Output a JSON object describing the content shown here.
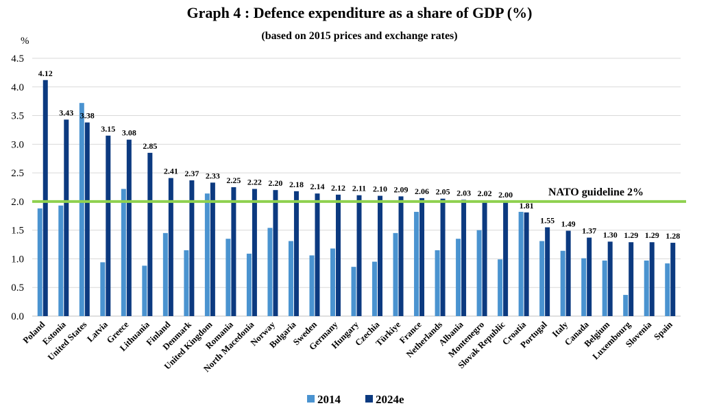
{
  "chart_data": {
    "type": "bar",
    "title": "Graph 4 : Defence expenditure as a share of GDP (%)",
    "subtitle": "(based on 2015 prices and exchange rates)",
    "ylabel": "%",
    "xlabel": "",
    "ylim": [
      0,
      4.5
    ],
    "yticks": [
      "0.0",
      "0.5",
      "1.0",
      "1.5",
      "2.0",
      "2.5",
      "3.0",
      "3.5",
      "4.0",
      "4.5"
    ],
    "grid": true,
    "legend_position": "bottom",
    "categories": [
      "Poland",
      "Estonia",
      "United States",
      "Latvia",
      "Greece",
      "Lithuania",
      "Finland",
      "Denmark",
      "United Kingdom",
      "Romania",
      "North Macedonia",
      "Norway",
      "Bulgaria",
      "Sweden",
      "Germany",
      "Hungary",
      "Czechia",
      "Türkiye",
      "France",
      "Netherlands",
      "Albania",
      "Montenegro",
      "Slovak Republic",
      "Croatia",
      "Portugal",
      "Italy",
      "Canada",
      "Belgium",
      "Luxembourg",
      "Slovenia",
      "Spain"
    ],
    "series": [
      {
        "name": "2014",
        "color": "#4a93d0",
        "values": [
          1.88,
          1.93,
          3.72,
          0.94,
          2.22,
          0.88,
          1.45,
          1.15,
          2.14,
          1.35,
          1.09,
          1.54,
          1.31,
          1.06,
          1.18,
          0.86,
          0.95,
          1.45,
          1.82,
          1.15,
          1.35,
          1.5,
          0.99,
          1.82,
          1.31,
          1.14,
          1.01,
          0.97,
          0.37,
          0.97,
          0.92
        ]
      },
      {
        "name": "2024e",
        "color": "#0c3a80",
        "values": [
          4.12,
          3.43,
          3.38,
          3.15,
          3.08,
          2.85,
          2.41,
          2.37,
          2.33,
          2.25,
          2.22,
          2.2,
          2.18,
          2.14,
          2.12,
          2.11,
          2.1,
          2.09,
          2.06,
          2.05,
          2.03,
          2.02,
          2.0,
          1.81,
          1.55,
          1.49,
          1.37,
          1.3,
          1.29,
          1.29,
          1.28
        ],
        "labels": [
          "4.12",
          "3.43",
          "3.38",
          "3.15",
          "3.08",
          "2.85",
          "2.41",
          "2.37",
          "2.33",
          "2.25",
          "2.22",
          "2.20",
          "2.18",
          "2.14",
          "2.12",
          "2.11",
          "2.10",
          "2.09",
          "2.06",
          "2.05",
          "2.03",
          "2.02",
          "2.00",
          "1.81",
          "1.55",
          "1.49",
          "1.37",
          "1.30",
          "1.29",
          "1.29",
          "1.28"
        ]
      }
    ],
    "reference_line": {
      "value": 2.0,
      "label": "NATO guideline 2%",
      "color": "#8fd14f"
    }
  }
}
